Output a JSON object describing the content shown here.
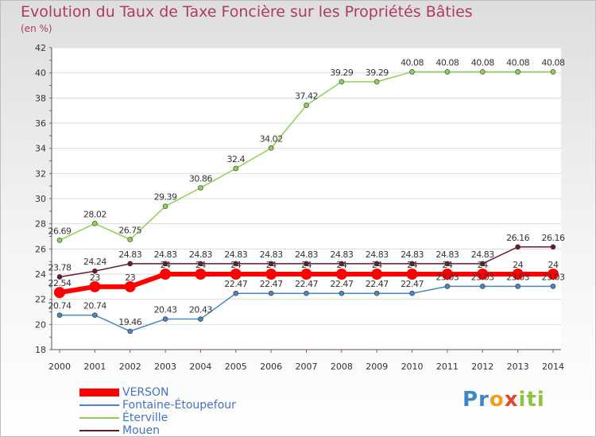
{
  "title": "Evolution du Taux de Taxe Foncière sur les Propriétés Bâties",
  "subtitle": "(en %)",
  "logo": {
    "p1": "Pr",
    "p2": "o",
    "p3": "x",
    "p4": "iti"
  },
  "chart_data": {
    "type": "line",
    "title": "Evolution du Taux de Taxe Foncière sur les Propriétés Bâties",
    "ylabel": "(en %)",
    "xlabel": "",
    "ylim": [
      18,
      42
    ],
    "y_ticks": [
      18,
      20,
      22,
      24,
      26,
      28,
      30,
      32,
      34,
      36,
      38,
      40,
      42
    ],
    "x": [
      "2000",
      "2001",
      "2002",
      "2003",
      "2004",
      "2005",
      "2006",
      "2007",
      "2008",
      "2009",
      "2010",
      "2011",
      "2012",
      "2013",
      "2014"
    ],
    "grid": "horizontal",
    "legend_position": "bottom-left",
    "series": [
      {
        "name": "VERSON",
        "color": "#ff0000",
        "values": [
          22.54,
          23,
          23,
          24,
          24,
          24,
          24,
          24,
          24,
          24,
          24,
          24,
          24,
          24,
          24
        ],
        "labels": [
          "22.54",
          "23",
          "23",
          "24",
          "24",
          "24",
          "24",
          "24",
          "24",
          "24",
          "24",
          "24",
          "24",
          "24",
          "24"
        ]
      },
      {
        "name": "Fontaine-Étoupefour",
        "color": "#4a86c5",
        "values": [
          20.74,
          20.74,
          19.46,
          20.43,
          20.43,
          22.47,
          22.47,
          22.47,
          22.47,
          22.47,
          22.47,
          23.03,
          23.03,
          23.03,
          23.03
        ],
        "labels": [
          "20.74",
          "20.74",
          "19.46",
          "20.43",
          "20.43",
          "22.47",
          "22.47",
          "22.47",
          "22.47",
          "22.47",
          "22.47",
          "23.03",
          "23.03",
          "23.03",
          "23.03"
        ]
      },
      {
        "name": "Éterville",
        "color": "#8ed053",
        "values": [
          26.69,
          28.02,
          26.75,
          29.39,
          30.86,
          32.4,
          34.02,
          37.42,
          39.29,
          39.29,
          40.08,
          40.08,
          40.08,
          40.08,
          40.08
        ],
        "labels": [
          "26.69",
          "28.02",
          "26.75",
          "29.39",
          "30.86",
          "32.4",
          "34.02",
          "37.42",
          "39.29",
          "39.29",
          "40.08",
          "40.08",
          "40.08",
          "40.08",
          "40.08"
        ]
      },
      {
        "name": "Mouen",
        "color": "#6a1b26",
        "values": [
          23.78,
          24.24,
          24.83,
          24.83,
          24.83,
          24.83,
          24.83,
          24.83,
          24.83,
          24.83,
          24.83,
          24.83,
          24.83,
          26.16,
          26.16
        ],
        "labels": [
          "23.78",
          "24.24",
          "24.83",
          "24.83",
          "24.83",
          "24.83",
          "24.83",
          "24.83",
          "24.83",
          "24.83",
          "24.83",
          "24.83",
          "24.83",
          "26.16",
          "26.16"
        ]
      }
    ]
  }
}
